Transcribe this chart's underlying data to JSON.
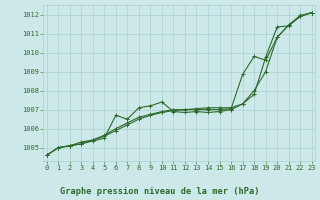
{
  "title": "Graphe pression niveau de la mer (hPa)",
  "xlabel_hours": [
    0,
    1,
    2,
    3,
    4,
    5,
    6,
    7,
    8,
    9,
    10,
    11,
    12,
    13,
    14,
    15,
    16,
    17,
    18,
    19,
    20,
    21,
    22,
    23
  ],
  "ylim": [
    1004.3,
    1012.5
  ],
  "xlim": [
    -0.3,
    23.3
  ],
  "yticks": [
    1005,
    1006,
    1007,
    1008,
    1009,
    1010,
    1011,
    1012
  ],
  "background_color": "#cce8e8",
  "grid_color": "#aad0d0",
  "line_color": "#2d6a2d",
  "line1": [
    1004.6,
    1005.0,
    1005.1,
    1005.2,
    1005.35,
    1005.5,
    1006.7,
    1006.5,
    1007.1,
    1007.2,
    1007.4,
    1006.9,
    1006.85,
    1006.9,
    1006.85,
    1006.9,
    1007.0,
    1007.3,
    1007.8,
    1009.75,
    1011.35,
    1011.4,
    1011.9,
    1012.1
  ],
  "line2": [
    1004.6,
    1005.0,
    1005.1,
    1005.2,
    1005.4,
    1005.6,
    1005.9,
    1006.2,
    1006.5,
    1006.7,
    1006.85,
    1006.95,
    1007.0,
    1007.05,
    1007.1,
    1007.1,
    1007.1,
    1007.3,
    1008.0,
    1009.0,
    1010.8,
    1011.45,
    1011.95,
    1012.1
  ],
  "line3": [
    1004.6,
    1005.0,
    1005.1,
    1005.3,
    1005.4,
    1005.65,
    1006.0,
    1006.3,
    1006.6,
    1006.75,
    1006.9,
    1007.0,
    1007.0,
    1007.0,
    1007.0,
    1007.0,
    1007.05,
    1008.85,
    1009.8,
    1009.6,
    1010.8,
    1011.45,
    1011.9,
    1012.1
  ],
  "marker": "+",
  "markersize": 3.5,
  "linewidth": 0.8,
  "tick_fontsize": 5.0,
  "title_fontsize": 6.2
}
